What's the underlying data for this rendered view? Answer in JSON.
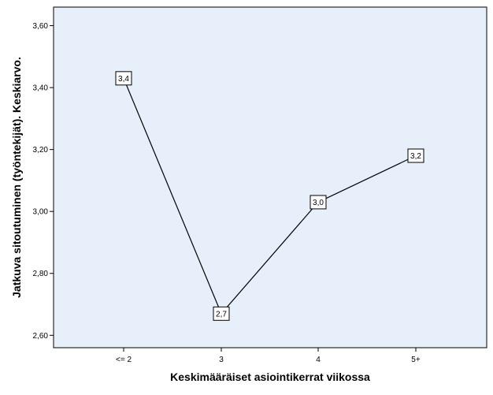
{
  "chart_data": {
    "type": "line",
    "categories": [
      "<= 2",
      "3",
      "4",
      "5+"
    ],
    "series": [
      {
        "values": [
          3.43,
          2.67,
          3.03,
          3.18
        ],
        "data_labels": [
          "3,4",
          "2,7",
          "3,0",
          "3,2"
        ]
      }
    ],
    "xlabel": "Keskimääräiset asiointikerrat viikossa",
    "ylabel": "Jatkuva sitoutuminen (työntekijät). Keskiarvo.",
    "ylim": [
      2.56,
      3.66
    ],
    "yticks": [
      2.6,
      2.8,
      3.0,
      3.2,
      3.4,
      3.6
    ],
    "ytick_labels": [
      "2,60",
      "2,80",
      "3,00",
      "3,20",
      "3,40",
      "3,60"
    ],
    "grid": false,
    "legend": false,
    "colors": {
      "plot_background": "#e6effa",
      "line": "#000000",
      "frame": "#000000"
    }
  }
}
